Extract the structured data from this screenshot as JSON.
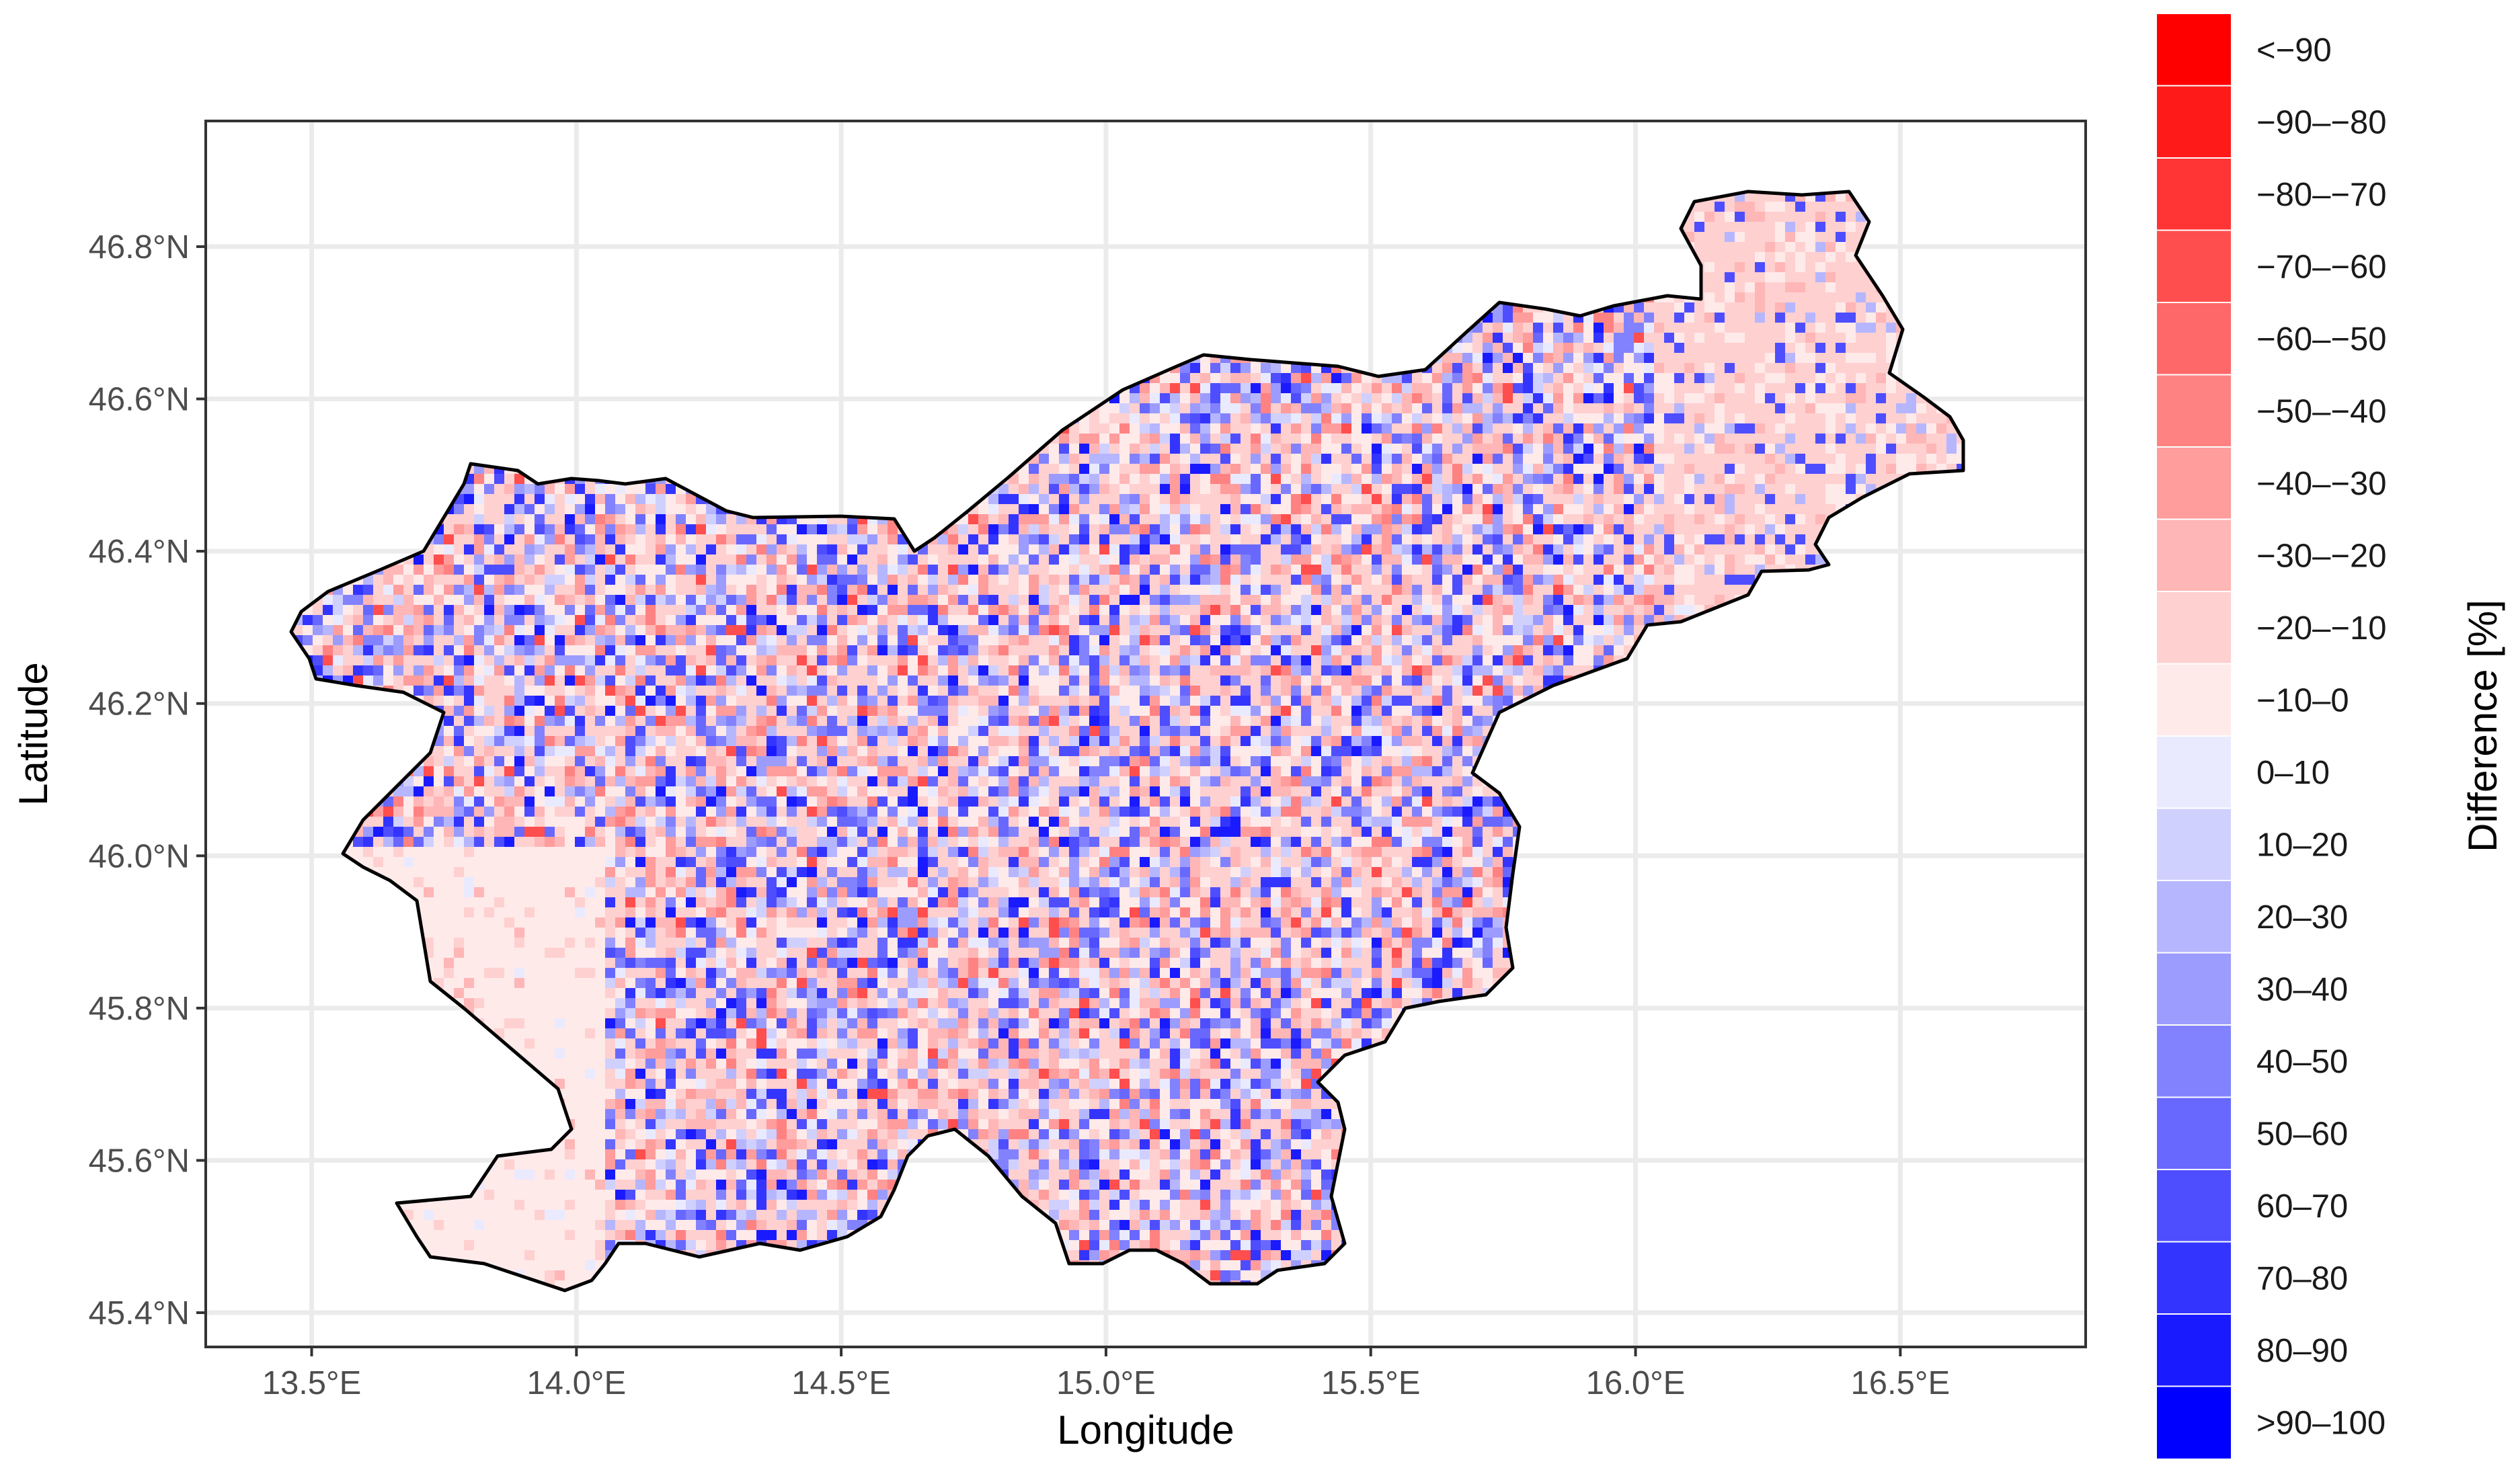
{
  "map": {
    "x_axis_title": "Longitude",
    "y_axis_title": "Latitude",
    "x_ticks": [
      {
        "value": 13.5,
        "label": "13.5°E"
      },
      {
        "value": 14.0,
        "label": "14.0°E"
      },
      {
        "value": 14.5,
        "label": "14.5°E"
      },
      {
        "value": 15.0,
        "label": "15.0°E"
      },
      {
        "value": 15.5,
        "label": "15.5°E"
      },
      {
        "value": 16.0,
        "label": "16.0°E"
      },
      {
        "value": 16.5,
        "label": "16.5°E"
      }
    ],
    "y_ticks": [
      {
        "value": 45.4,
        "label": "45.4°N"
      },
      {
        "value": 45.6,
        "label": "45.6°N"
      },
      {
        "value": 45.8,
        "label": "45.8°N"
      },
      {
        "value": 46.0,
        "label": "46.0°N"
      },
      {
        "value": 46.2,
        "label": "46.2°N"
      },
      {
        "value": 46.4,
        "label": "46.4°N"
      },
      {
        "value": 46.6,
        "label": "46.6°N"
      },
      {
        "value": 46.8,
        "label": "46.8°N"
      }
    ],
    "x_range": [
      13.3,
      16.85
    ],
    "y_range": [
      45.355,
      46.965
    ],
    "grid": true,
    "border_color": "#000000"
  },
  "legend": {
    "title": "Difference [%]",
    "position": "right",
    "classes": [
      {
        "label": "<−90",
        "color": "#FF0000"
      },
      {
        "label": "−90–−80",
        "color": "#FF1A1A"
      },
      {
        "label": "−80–−70",
        "color": "#FF3434"
      },
      {
        "label": "−70–−60",
        "color": "#FF4E4E"
      },
      {
        "label": "−60–−50",
        "color": "#FF6868"
      },
      {
        "label": "−50–−40",
        "color": "#FF8282"
      },
      {
        "label": "−40–−30",
        "color": "#FF9C9C"
      },
      {
        "label": "−30–−20",
        "color": "#FFB6B6"
      },
      {
        "label": "−20–−10",
        "color": "#FFD0D0"
      },
      {
        "label": "−10–0",
        "color": "#FFEAEA"
      },
      {
        "label": "0–10",
        "color": "#EAEAFF"
      },
      {
        "label": "10–20",
        "color": "#D0D0FF"
      },
      {
        "label": "20–30",
        "color": "#B6B6FF"
      },
      {
        "label": "30–40",
        "color": "#9C9CFF"
      },
      {
        "label": "40–50",
        "color": "#8282FF"
      },
      {
        "label": "50–60",
        "color": "#6868FF"
      },
      {
        "label": "60–70",
        "color": "#4E4EFF"
      },
      {
        "label": "70–80",
        "color": "#3434FF"
      },
      {
        "label": "80–90",
        "color": "#1A1AFF"
      },
      {
        "label": ">90–100",
        "color": "#0000FF"
      }
    ]
  }
}
